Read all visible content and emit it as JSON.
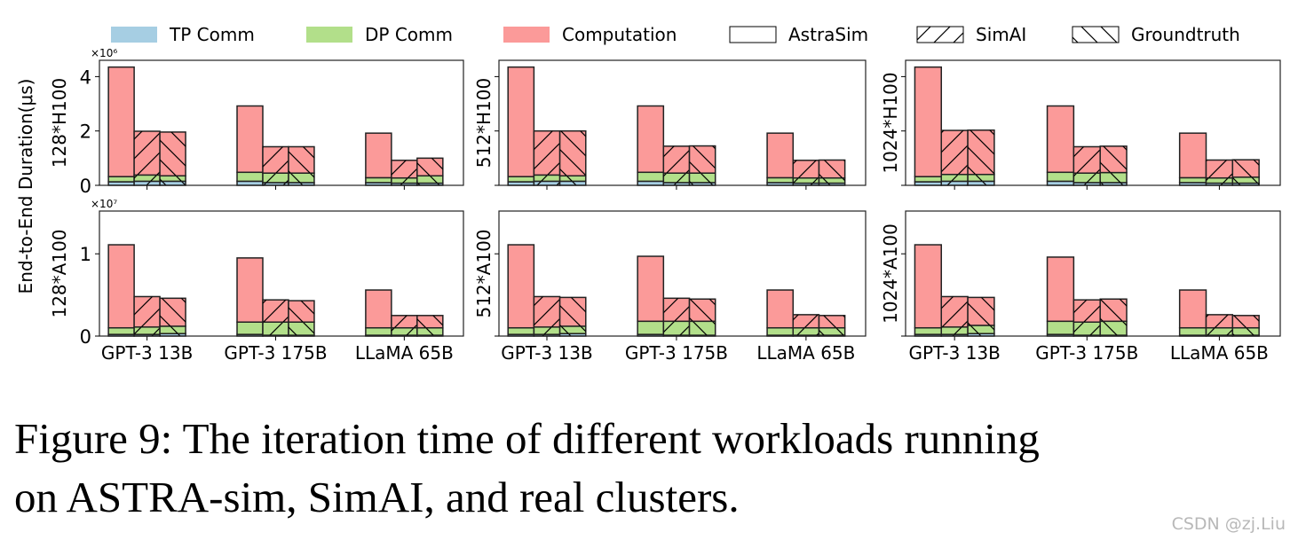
{
  "caption": {
    "line1": "Figure 9: The iteration time of different workloads running",
    "line2": "on ASTRA-sim, SimAI, and real clusters."
  },
  "watermark": "CSDN @zj.Liu",
  "colors": {
    "TP Comm": "#a6cee3",
    "DP Comm": "#b2df8a",
    "Computation": "#fb9a99"
  },
  "legend": {
    "components": [
      "TP Comm",
      "DP Comm",
      "Computation"
    ],
    "simulators": [
      {
        "label": "AstraSim",
        "hatch": "none"
      },
      {
        "label": "SimAI",
        "hatch": "/"
      },
      {
        "label": "Groundtruth",
        "hatch": "\\"
      }
    ],
    "placement": "top"
  },
  "ylabel": "End-to-End Duration(μs)",
  "chart_data": [
    {
      "type": "bar",
      "stacked": true,
      "row_label": "128*H100",
      "scale_label": "×10⁶",
      "ylim": [
        0,
        4.6
      ],
      "yticks": [
        "0",
        "2",
        "4"
      ],
      "ytick_values": [
        0,
        2,
        4
      ],
      "categories": [
        "GPT-3 13B",
        "GPT-3 175B",
        "LLaMA 65B"
      ],
      "show_xticklabels": false,
      "bars": {
        "AstraSim": {
          "TP Comm": [
            0.13,
            0.15,
            0.1
          ],
          "DP Comm": [
            0.19,
            0.33,
            0.18
          ],
          "Computation": [
            4.03,
            2.44,
            1.64
          ]
        },
        "SimAI": {
          "TP Comm": [
            0.15,
            0.1,
            0.08
          ],
          "DP Comm": [
            0.23,
            0.35,
            0.19
          ],
          "Computation": [
            1.61,
            0.97,
            0.65
          ]
        },
        "Groundtruth": {
          "TP Comm": [
            0.15,
            0.1,
            0.08
          ],
          "DP Comm": [
            0.2,
            0.35,
            0.27
          ],
          "Computation": [
            1.61,
            0.97,
            0.65
          ]
        }
      }
    },
    {
      "type": "bar",
      "stacked": true,
      "row_label": "512*H100",
      "scale_label": "",
      "ylim": [
        0,
        4.6
      ],
      "yticks": [
        "",
        "",
        ""
      ],
      "ytick_values": [
        0,
        2,
        4
      ],
      "categories": [
        "GPT-3 13B",
        "GPT-3 175B",
        "LLaMA 65B"
      ],
      "show_xticklabels": false,
      "bars": {
        "AstraSim": {
          "TP Comm": [
            0.13,
            0.15,
            0.1
          ],
          "DP Comm": [
            0.19,
            0.33,
            0.18
          ],
          "Computation": [
            4.03,
            2.44,
            1.64
          ]
        },
        "SimAI": {
          "TP Comm": [
            0.15,
            0.1,
            0.08
          ],
          "DP Comm": [
            0.23,
            0.35,
            0.19
          ],
          "Computation": [
            1.62,
            0.99,
            0.65
          ]
        },
        "Groundtruth": {
          "TP Comm": [
            0.15,
            0.1,
            0.08
          ],
          "DP Comm": [
            0.2,
            0.35,
            0.19
          ],
          "Computation": [
            1.65,
            1.0,
            0.66
          ]
        }
      }
    },
    {
      "type": "bar",
      "stacked": true,
      "row_label": "1024*H100",
      "scale_label": "",
      "ylim": [
        0,
        4.6
      ],
      "yticks": [
        "",
        "",
        ""
      ],
      "ytick_values": [
        0,
        2,
        4
      ],
      "categories": [
        "GPT-3 13B",
        "GPT-3 175B",
        "LLaMA 65B"
      ],
      "show_xticklabels": false,
      "bars": {
        "AstraSim": {
          "TP Comm": [
            0.13,
            0.15,
            0.1
          ],
          "DP Comm": [
            0.19,
            0.33,
            0.18
          ],
          "Computation": [
            4.03,
            2.44,
            1.64
          ]
        },
        "SimAI": {
          "TP Comm": [
            0.15,
            0.1,
            0.08
          ],
          "DP Comm": [
            0.25,
            0.35,
            0.19
          ],
          "Computation": [
            1.62,
            0.97,
            0.66
          ]
        },
        "Groundtruth": {
          "TP Comm": [
            0.15,
            0.1,
            0.08
          ],
          "DP Comm": [
            0.25,
            0.37,
            0.22
          ],
          "Computation": [
            1.63,
            0.97,
            0.64
          ]
        }
      }
    },
    {
      "type": "bar",
      "stacked": true,
      "row_label": "128*A100",
      "scale_label": "×10⁷",
      "ylim": [
        0,
        1.52
      ],
      "yticks": [
        "0",
        "1"
      ],
      "ytick_values": [
        0,
        1
      ],
      "categories": [
        "GPT-3 13B",
        "GPT-3 175B",
        "LLaMA 65B"
      ],
      "show_xticklabels": true,
      "bars": {
        "AstraSim": {
          "TP Comm": [
            0.02,
            0.02,
            0.01
          ],
          "DP Comm": [
            0.08,
            0.15,
            0.09
          ],
          "Computation": [
            1.01,
            0.78,
            0.46
          ]
        },
        "SimAI": {
          "TP Comm": [
            0.02,
            0.01,
            0.01
          ],
          "DP Comm": [
            0.09,
            0.16,
            0.09
          ],
          "Computation": [
            0.37,
            0.27,
            0.15
          ]
        },
        "Groundtruth": {
          "TP Comm": [
            0.03,
            0.01,
            0.01
          ],
          "DP Comm": [
            0.09,
            0.16,
            0.09
          ],
          "Computation": [
            0.34,
            0.26,
            0.15
          ]
        }
      }
    },
    {
      "type": "bar",
      "stacked": true,
      "row_label": "512*A100",
      "scale_label": "",
      "ylim": [
        0,
        1.52
      ],
      "yticks": [
        "",
        ""
      ],
      "ytick_values": [
        0,
        1
      ],
      "categories": [
        "GPT-3 13B",
        "GPT-3 175B",
        "LLaMA 65B"
      ],
      "show_xticklabels": true,
      "bars": {
        "AstraSim": {
          "TP Comm": [
            0.02,
            0.02,
            0.01
          ],
          "DP Comm": [
            0.08,
            0.16,
            0.09
          ],
          "Computation": [
            1.01,
            0.79,
            0.46
          ]
        },
        "SimAI": {
          "TP Comm": [
            0.02,
            0.01,
            0.01
          ],
          "DP Comm": [
            0.09,
            0.17,
            0.09
          ],
          "Computation": [
            0.37,
            0.28,
            0.16
          ]
        },
        "Groundtruth": {
          "TP Comm": [
            0.03,
            0.01,
            0.01
          ],
          "DP Comm": [
            0.09,
            0.17,
            0.09
          ],
          "Computation": [
            0.35,
            0.27,
            0.15
          ]
        }
      }
    },
    {
      "type": "bar",
      "stacked": true,
      "row_label": "1024*A100",
      "scale_label": "",
      "ylim": [
        0,
        1.52
      ],
      "yticks": [
        "",
        ""
      ],
      "ytick_values": [
        0,
        1
      ],
      "categories": [
        "GPT-3 13B",
        "GPT-3 175B",
        "LLaMA 65B"
      ],
      "show_xticklabels": true,
      "bars": {
        "AstraSim": {
          "TP Comm": [
            0.02,
            0.02,
            0.01
          ],
          "DP Comm": [
            0.08,
            0.16,
            0.09
          ],
          "Computation": [
            1.01,
            0.78,
            0.46
          ]
        },
        "SimAI": {
          "TP Comm": [
            0.02,
            0.01,
            0.01
          ],
          "DP Comm": [
            0.09,
            0.16,
            0.09
          ],
          "Computation": [
            0.37,
            0.27,
            0.16
          ]
        },
        "Groundtruth": {
          "TP Comm": [
            0.03,
            0.01,
            0.01
          ],
          "DP Comm": [
            0.1,
            0.17,
            0.09
          ],
          "Computation": [
            0.34,
            0.27,
            0.15
          ]
        }
      }
    }
  ]
}
